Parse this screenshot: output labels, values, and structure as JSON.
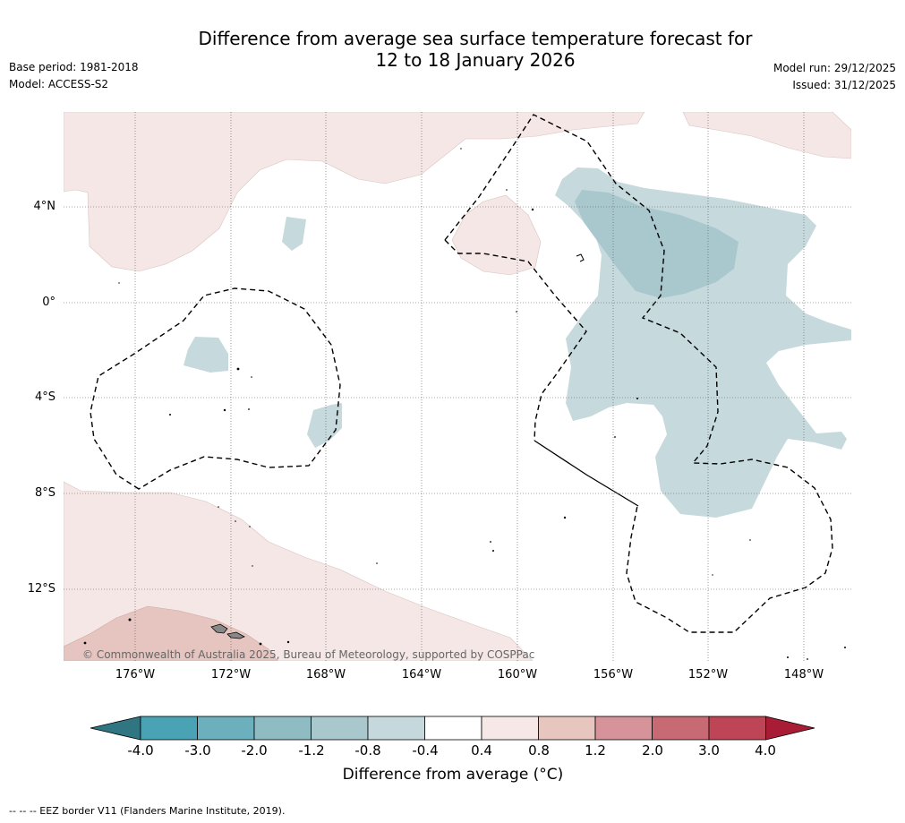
{
  "title_line1": "Difference from average sea surface temperature forecast for",
  "title_line2": "12 to 18 January 2026",
  "base_period": "Base period: 1981-2018",
  "model": "Model: ACCESS-S2",
  "model_run": "Model run: 29/12/2025",
  "issued": "Issued: 31/12/2025",
  "lat_labels": [
    "4°N",
    "0°",
    "4°S",
    "8°S",
    "12°S"
  ],
  "lon_labels": [
    "176°W",
    "172°W",
    "168°W",
    "164°W",
    "160°W",
    "156°W",
    "152°W",
    "148°W"
  ],
  "copyright": "© Commonwealth of Australia 2025, Bureau of Meteorology, supported by COSPPac",
  "colorbar": {
    "title": "Difference from average (°C)",
    "ticks": [
      "-4.0",
      "-3.0",
      "-2.0",
      "-1.2",
      "-0.8",
      "-0.4",
      "0.4",
      "0.8",
      "1.2",
      "2.0",
      "3.0",
      "4.0"
    ],
    "colors": [
      "#2f7582",
      "#4aa3b5",
      "#6cafbd",
      "#8fbcc3",
      "#a9c8cd",
      "#c5d8dc",
      "#ffffff",
      "#f5e8e6",
      "#e8c6c0",
      "#d6939a",
      "#c86a74",
      "#be4555",
      "#a81c36"
    ]
  },
  "footnote": "--  --  -- EEZ border V11 (Flanders Marine Institute, 2019).",
  "chart_data": {
    "type": "map",
    "variable": "Sea surface temperature anomaly forecast (°C)",
    "extent": {
      "lon_west": -179,
      "lon_east": -146,
      "lat_north": 8,
      "lat_south": -15
    },
    "features": [
      {
        "name": "warm anomaly north-west",
        "range": "0.4 to 0.8",
        "location": "north of ~2°N, 179°W-165°W"
      },
      {
        "name": "warm anomaly central",
        "range": "0.4 to 0.8",
        "location": "~2°N-4°N, 161°W-159°W"
      },
      {
        "name": "cool anomaly east",
        "range": "-0.8 to -0.4",
        "location": "4°N-9°S, 158°W-146°W"
      },
      {
        "name": "cool core",
        "range": "-1.2 to -0.8",
        "location": "~2°N-4°N, 156°W-152°W"
      },
      {
        "name": "warm anomaly south-west",
        "range": "0.4 to 1.2",
        "location": "south of ~8°S, west of 158°W"
      }
    ]
  }
}
